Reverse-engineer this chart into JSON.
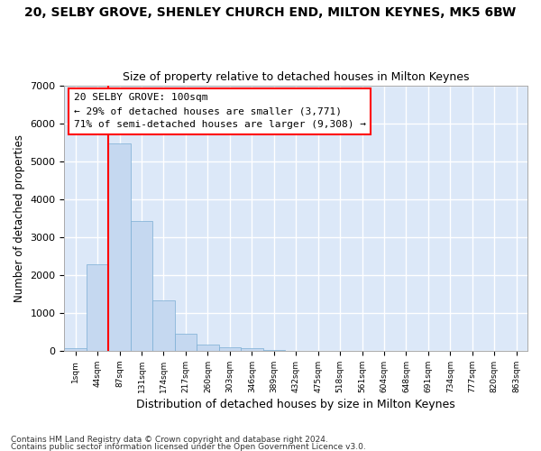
{
  "title": "20, SELBY GROVE, SHENLEY CHURCH END, MILTON KEYNES, MK5 6BW",
  "subtitle": "Size of property relative to detached houses in Milton Keynes",
  "xlabel": "Distribution of detached houses by size in Milton Keynes",
  "ylabel": "Number of detached properties",
  "bar_color": "#c5d8f0",
  "bar_edge_color": "#7aaed4",
  "plot_background_color": "#dce8f8",
  "fig_background_color": "#ffffff",
  "grid_color": "#ffffff",
  "categories": [
    "1sqm",
    "44sqm",
    "87sqm",
    "131sqm",
    "174sqm",
    "217sqm",
    "260sqm",
    "303sqm",
    "346sqm",
    "389sqm",
    "432sqm",
    "475sqm",
    "518sqm",
    "561sqm",
    "604sqm",
    "648sqm",
    "691sqm",
    "734sqm",
    "777sqm",
    "820sqm",
    "863sqm"
  ],
  "values": [
    80,
    2270,
    5470,
    3420,
    1340,
    460,
    170,
    95,
    60,
    30,
    10,
    5,
    0,
    0,
    0,
    0,
    0,
    0,
    0,
    0,
    0
  ],
  "red_line_index": 1.5,
  "annotation_line1": "20 SELBY GROVE: 100sqm",
  "annotation_line2": "← 29% of detached houses are smaller (3,771)",
  "annotation_line3": "71% of semi-detached houses are larger (9,308) →",
  "ylim": [
    0,
    7000
  ],
  "yticks": [
    0,
    1000,
    2000,
    3000,
    4000,
    5000,
    6000,
    7000
  ],
  "footnote1": "Contains HM Land Registry data © Crown copyright and database right 2024.",
  "footnote2": "Contains public sector information licensed under the Open Government Licence v3.0."
}
